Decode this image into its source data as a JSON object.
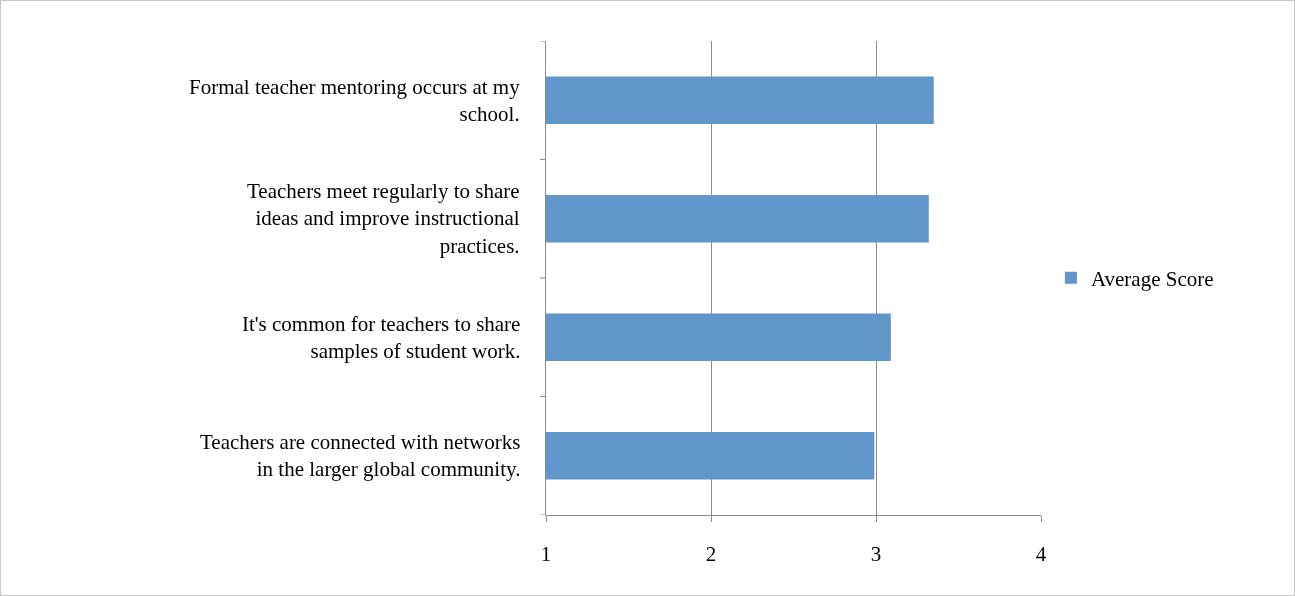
{
  "chart_data": {
    "type": "bar",
    "orientation": "horizontal",
    "categories": [
      "Formal teacher mentoring occurs at my school.",
      "Teachers meet regularly to share ideas and improve instructional practices.",
      "It's common for teachers to share samples of student work.",
      "Teachers are connected with networks in the larger global community."
    ],
    "series": [
      {
        "name": "Average Score",
        "color": "#6096c9",
        "values": [
          3.35,
          3.32,
          3.09,
          2.99
        ]
      }
    ],
    "xlim": [
      1,
      4
    ],
    "xticks": [
      1,
      2,
      3,
      4
    ],
    "grid": "x",
    "legend": "right"
  }
}
